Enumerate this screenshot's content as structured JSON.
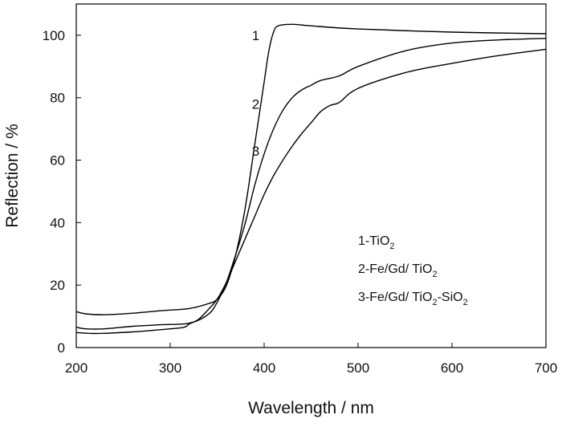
{
  "chart_data": {
    "type": "line",
    "title": "",
    "xlabel": "Wavelength / nm",
    "ylabel": "Reflection / %",
    "xlim": [
      200,
      700
    ],
    "ylim": [
      0,
      110
    ],
    "xticks": [
      200,
      300,
      400,
      500,
      600,
      700
    ],
    "yticks": [
      0,
      20,
      40,
      60,
      80,
      100
    ],
    "grid": false,
    "series": [
      {
        "name": "1",
        "legend": {
          "prefix": "1-TiO",
          "sub1": "2",
          "mid": "",
          "sub2": ""
        },
        "points": [
          [
            200,
            11.5
          ],
          [
            210,
            10.8
          ],
          [
            230,
            10.5
          ],
          [
            260,
            11
          ],
          [
            290,
            11.8
          ],
          [
            320,
            12.5
          ],
          [
            340,
            14
          ],
          [
            350,
            15.5
          ],
          [
            360,
            20
          ],
          [
            370,
            30
          ],
          [
            380,
            45
          ],
          [
            390,
            65
          ],
          [
            400,
            85
          ],
          [
            405,
            95
          ],
          [
            410,
            101
          ],
          [
            415,
            103
          ],
          [
            430,
            103.5
          ],
          [
            450,
            103
          ],
          [
            500,
            102
          ],
          [
            600,
            101
          ],
          [
            700,
            100.5
          ]
        ]
      },
      {
        "name": "2",
        "legend": {
          "prefix": "2-Fe/Gd/ TiO",
          "sub1": "2",
          "mid": "",
          "sub2": ""
        },
        "points": [
          [
            200,
            6.5
          ],
          [
            210,
            6
          ],
          [
            230,
            6
          ],
          [
            260,
            6.8
          ],
          [
            290,
            7.3
          ],
          [
            320,
            7.8
          ],
          [
            340,
            10.5
          ],
          [
            350,
            14.5
          ],
          [
            360,
            21
          ],
          [
            370,
            30
          ],
          [
            380,
            40
          ],
          [
            390,
            52
          ],
          [
            400,
            62
          ],
          [
            410,
            70
          ],
          [
            420,
            76
          ],
          [
            430,
            80
          ],
          [
            440,
            82.5
          ],
          [
            450,
            84
          ],
          [
            460,
            85.5
          ],
          [
            480,
            87
          ],
          [
            500,
            90
          ],
          [
            550,
            95
          ],
          [
            600,
            97.5
          ],
          [
            650,
            98.5
          ],
          [
            700,
            99
          ]
        ]
      },
      {
        "name": "3",
        "legend": {
          "prefix": "3-Fe/Gd/ TiO",
          "sub1": "2",
          "mid": "-SiO",
          "sub2": "2"
        },
        "points": [
          [
            200,
            4.8
          ],
          [
            220,
            4.5
          ],
          [
            260,
            5
          ],
          [
            300,
            6
          ],
          [
            315,
            6.5
          ],
          [
            320,
            7.5
          ],
          [
            330,
            9
          ],
          [
            340,
            12
          ],
          [
            350,
            15.5
          ],
          [
            360,
            21
          ],
          [
            370,
            28
          ],
          [
            380,
            35
          ],
          [
            390,
            42
          ],
          [
            400,
            49
          ],
          [
            410,
            55
          ],
          [
            420,
            60
          ],
          [
            430,
            64.5
          ],
          [
            440,
            68.5
          ],
          [
            450,
            72
          ],
          [
            460,
            75.5
          ],
          [
            470,
            77.5
          ],
          [
            480,
            78.5
          ],
          [
            500,
            83
          ],
          [
            550,
            88
          ],
          [
            600,
            91
          ],
          [
            650,
            93.5
          ],
          [
            700,
            95.5
          ]
        ]
      }
    ],
    "curve_labels": [
      {
        "text": "1",
        "x": 440,
        "y": 100
      },
      {
        "text": "2",
        "x": 440,
        "y": 78
      },
      {
        "text": "3",
        "x": 440,
        "y": 63
      }
    ]
  }
}
